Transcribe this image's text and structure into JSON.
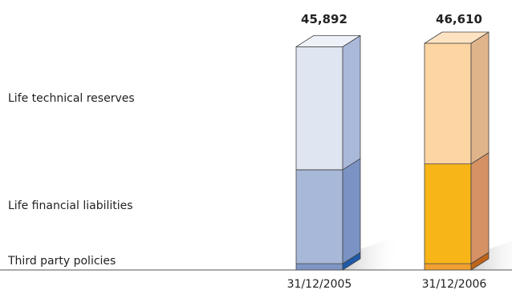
{
  "chart_data": {
    "type": "bar",
    "stacked": true,
    "categories": [
      "31/12/2005",
      "31/12/2006"
    ],
    "series": [
      {
        "name": "Third party policies",
        "values": [
          1300,
          1300
        ],
        "colors": [
          {
            "front": "#7f96c4",
            "side": "#1e5aa8",
            "top": "#a9b9da"
          },
          {
            "front": "#f0a030",
            "side": "#c06418",
            "top": "#f6c070"
          }
        ]
      },
      {
        "name": "Life financial liabilities",
        "values": [
          19300,
          20500
        ],
        "colors": [
          {
            "front": "#a8b8d8",
            "side": "#7a92c4",
            "top": "#c4d0e6"
          },
          {
            "front": "#f7b518",
            "side": "#d69264",
            "top": "#f9cf70"
          }
        ]
      },
      {
        "name": "Life technical reserves",
        "values": [
          25292,
          24810
        ],
        "colors": [
          {
            "front": "#dfe5f1",
            "side": "#aab8d9",
            "top": "#eef1f8"
          },
          {
            "front": "#fdd5a2",
            "side": "#e0b48b",
            "top": "#fee3c3"
          }
        ]
      }
    ],
    "totals": [
      "45,892",
      "46,610"
    ],
    "legend_labels": [
      "Life technical reserves",
      "Life financial liabilities",
      "Third party policies"
    ]
  }
}
